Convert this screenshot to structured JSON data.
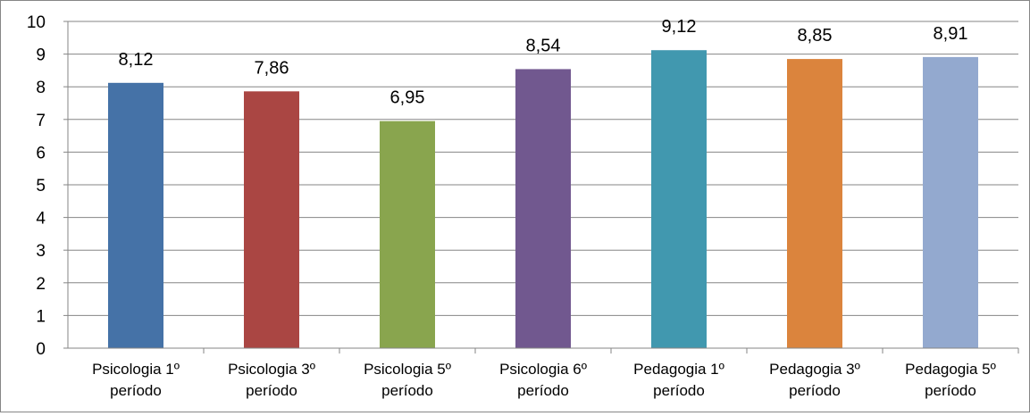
{
  "chart_data": {
    "type": "bar",
    "categories": [
      [
        "Psicologia 1º",
        "período"
      ],
      [
        "Psicologia 3º",
        "período"
      ],
      [
        "Psicologia 5º",
        "período"
      ],
      [
        "Psicologia 6º",
        "período"
      ],
      [
        "Pedagogia 1º",
        "período"
      ],
      [
        "Pedagogia 3º",
        "período"
      ],
      [
        "Pedagogia 5º",
        "período"
      ]
    ],
    "values": [
      8.12,
      7.86,
      6.95,
      8.54,
      9.12,
      8.85,
      8.91
    ],
    "data_labels": [
      "8,12",
      "7,86",
      "6,95",
      "8,54",
      "9,12",
      "8,85",
      "8,91"
    ],
    "colors": [
      "#4572a7",
      "#aa4643",
      "#89a54e",
      "#71588f",
      "#4198af",
      "#db843d",
      "#93a9cf"
    ],
    "ylim": [
      0,
      10
    ],
    "yticks": [
      "0",
      "1",
      "2",
      "3",
      "4",
      "5",
      "6",
      "7",
      "8",
      "9",
      "10"
    ],
    "grid": true,
    "legend": "none",
    "title": "",
    "xlabel": "",
    "ylabel": ""
  }
}
